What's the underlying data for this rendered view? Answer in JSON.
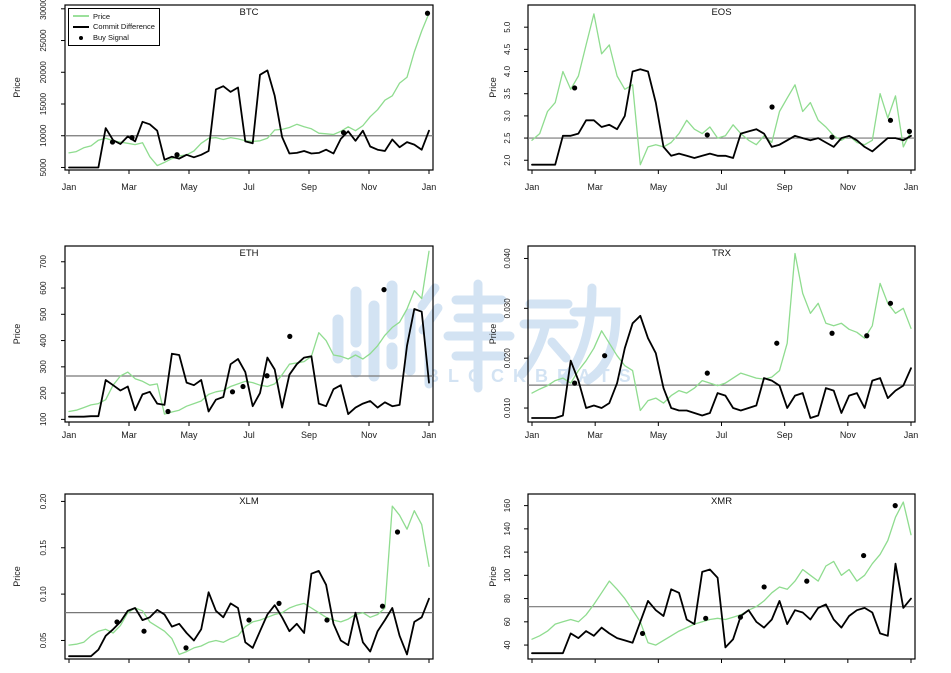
{
  "legend": {
    "items": [
      {
        "label": "Price",
        "swatch": "line",
        "color": "#9be09b"
      },
      {
        "label": "Commit Difference",
        "swatch": "line",
        "color": "#000000"
      },
      {
        "label": "Buy Signal",
        "swatch": "point",
        "color": "#000000"
      }
    ]
  },
  "watermark": {
    "text": "律动",
    "subtext": "BLOCKBEATS",
    "color": "#a8c8e8"
  },
  "colors": {
    "price_line": "#8fdc8f",
    "commit_line": "#000000",
    "hline": "#777777",
    "tick_text": "#1a1a1a"
  },
  "chart_data": [
    {
      "type": "line",
      "title": "BTC",
      "ylabel": "Price",
      "x_tick_labels": [
        "Jan",
        "Mar",
        "May",
        "Jul",
        "Sep",
        "Nov",
        "Jan"
      ],
      "x_tick_months": [
        0,
        2,
        4,
        6,
        8,
        10,
        12
      ],
      "ylim": [
        4600,
        30600
      ],
      "y_tick_values": [
        5000,
        10000,
        15000,
        20000,
        25000,
        30000
      ],
      "y_tick_labels": [
        "5000",
        "10000",
        "15000",
        "20000",
        "25000",
        "30000"
      ],
      "hline": 10000,
      "series": [
        {
          "name": "Price",
          "values": [
            7300,
            7500,
            8100,
            8400,
            9300,
            9600,
            9200,
            9000,
            8800,
            8600,
            8900,
            6700,
            5300,
            5800,
            6400,
            6800,
            7000,
            7600,
            8800,
            9600,
            9700,
            9400,
            9700,
            9500,
            9200,
            9100,
            9200,
            9600,
            10900,
            11000,
            11300,
            11800,
            11400,
            11100,
            10400,
            10300,
            10200,
            10700,
            11400,
            10800,
            11600,
            13000,
            14100,
            15600,
            16300,
            18300,
            19200,
            23200,
            26500,
            29300
          ]
        },
        {
          "name": "Commit Difference",
          "values": [
            5000,
            5000,
            5000,
            5000,
            5000,
            11200,
            9300,
            8700,
            9900,
            9100,
            12200,
            11800,
            10800,
            6200,
            6700,
            6400,
            7000,
            6600,
            7000,
            7600,
            17300,
            17800,
            16900,
            17600,
            9100,
            8800,
            19600,
            20300,
            16300,
            9800,
            7200,
            7300,
            7600,
            7200,
            7300,
            7800,
            7200,
            9500,
            10700,
            9200,
            10800,
            8300,
            7800,
            7600,
            9400,
            8200,
            9000,
            8600,
            7800,
            10800
          ]
        }
      ],
      "buy_signals": {
        "name": "Buy Signal",
        "x": [
          1.45,
          2.1,
          3.6,
          9.15,
          11.95
        ],
        "y": [
          9000,
          9700,
          7000,
          10500,
          29300
        ]
      }
    },
    {
      "type": "line",
      "title": "EOS",
      "ylabel": "Price",
      "x_tick_labels": [
        "Jan",
        "Mar",
        "May",
        "Jul",
        "Sep",
        "Nov",
        "Jan"
      ],
      "x_tick_months": [
        0,
        2,
        4,
        6,
        8,
        10,
        12
      ],
      "ylim": [
        1.78,
        5.5
      ],
      "y_tick_values": [
        2.0,
        2.5,
        3.0,
        3.5,
        4.0,
        4.5,
        5.0
      ],
      "y_tick_labels": [
        "2.0",
        "2.5",
        "3.0",
        "3.5",
        "4.0",
        "4.5",
        "5.0"
      ],
      "hline": 2.5,
      "series": [
        {
          "name": "Price",
          "values": [
            2.45,
            2.6,
            3.1,
            3.3,
            4.0,
            3.6,
            3.9,
            4.6,
            5.3,
            4.4,
            4.6,
            3.9,
            3.6,
            3.7,
            1.9,
            2.3,
            2.35,
            2.3,
            2.4,
            2.6,
            2.9,
            2.7,
            2.6,
            2.75,
            2.5,
            2.55,
            2.8,
            2.6,
            2.45,
            2.35,
            2.55,
            2.4,
            3.1,
            3.4,
            3.7,
            3.1,
            3.3,
            2.9,
            2.75,
            2.55,
            2.45,
            2.55,
            2.4,
            2.35,
            2.45,
            3.5,
            2.95,
            3.45,
            2.3,
            2.65
          ]
        },
        {
          "name": "Commit Difference",
          "values": [
            1.9,
            1.9,
            1.9,
            1.9,
            2.55,
            2.55,
            2.6,
            2.9,
            2.9,
            2.75,
            2.8,
            2.7,
            3.0,
            4.0,
            4.05,
            4.0,
            3.3,
            2.3,
            2.1,
            2.15,
            2.1,
            2.05,
            2.1,
            2.15,
            2.1,
            2.1,
            2.05,
            2.6,
            2.65,
            2.7,
            2.6,
            2.3,
            2.35,
            2.45,
            2.55,
            2.5,
            2.45,
            2.5,
            2.4,
            2.3,
            2.5,
            2.55,
            2.45,
            2.3,
            2.2,
            2.35,
            2.5,
            2.5,
            2.45,
            2.55
          ]
        }
      ],
      "buy_signals": {
        "name": "Buy Signal",
        "x": [
          1.35,
          5.55,
          7.6,
          9.5,
          11.35,
          11.95
        ],
        "y": [
          3.63,
          2.57,
          3.2,
          2.52,
          2.9,
          2.65
        ]
      }
    },
    {
      "type": "line",
      "title": "ETH",
      "ylabel": "Price",
      "x_tick_labels": [
        "Jan",
        "Mar",
        "May",
        "Jul",
        "Sep",
        "Nov",
        "Jan"
      ],
      "x_tick_months": [
        0,
        2,
        4,
        6,
        8,
        10,
        12
      ],
      "ylim": [
        90,
        760
      ],
      "y_tick_values": [
        100,
        200,
        300,
        400,
        500,
        600,
        700
      ],
      "y_tick_labels": [
        "100",
        "200",
        "300",
        "400",
        "500",
        "600",
        "700"
      ],
      "hline": 265,
      "series": [
        {
          "name": "Price",
          "values": [
            130,
            135,
            145,
            155,
            160,
            175,
            230,
            265,
            280,
            255,
            245,
            230,
            235,
            120,
            128,
            135,
            150,
            160,
            170,
            195,
            205,
            210,
            225,
            235,
            245,
            240,
            230,
            225,
            235,
            270,
            310,
            315,
            320,
            340,
            430,
            400,
            345,
            340,
            330,
            345,
            330,
            350,
            380,
            420,
            450,
            470,
            520,
            590,
            560,
            740
          ]
        },
        {
          "name": "Commit Difference",
          "values": [
            110,
            110,
            110,
            112,
            112,
            250,
            230,
            210,
            225,
            135,
            195,
            205,
            160,
            155,
            350,
            345,
            240,
            230,
            250,
            130,
            175,
            185,
            310,
            330,
            280,
            150,
            200,
            335,
            290,
            145,
            270,
            310,
            335,
            340,
            160,
            150,
            215,
            230,
            120,
            145,
            160,
            170,
            145,
            165,
            150,
            155,
            380,
            520,
            510,
            240
          ]
        }
      ],
      "buy_signals": {
        "name": "Buy Signal",
        "x": [
          3.3,
          5.45,
          5.8,
          6.6,
          7.36,
          10.5
        ],
        "y": [
          130,
          205,
          225,
          266,
          416,
          594
        ]
      }
    },
    {
      "type": "line",
      "title": "TRX",
      "ylabel": "Price",
      "x_tick_labels": [
        "Jan",
        "Mar",
        "May",
        "Jul",
        "Sep",
        "Nov",
        "Jan"
      ],
      "x_tick_months": [
        0,
        2,
        4,
        6,
        8,
        10,
        12
      ],
      "ylim": [
        0.0072,
        0.0425
      ],
      "y_tick_values": [
        0.01,
        0.02,
        0.03,
        0.04
      ],
      "y_tick_labels": [
        "0.010",
        "0.020",
        "0.030",
        "0.040"
      ],
      "hline": 0.0146,
      "series": [
        {
          "name": "Price",
          "values": [
            0.013,
            0.0138,
            0.0145,
            0.0155,
            0.016,
            0.015,
            0.0175,
            0.0195,
            0.022,
            0.0255,
            0.023,
            0.0205,
            0.0185,
            0.0175,
            0.0095,
            0.0115,
            0.012,
            0.011,
            0.0125,
            0.0135,
            0.013,
            0.014,
            0.0155,
            0.015,
            0.0145,
            0.015,
            0.016,
            0.017,
            0.0165,
            0.016,
            0.0158,
            0.0162,
            0.0175,
            0.023,
            0.041,
            0.033,
            0.029,
            0.031,
            0.027,
            0.0265,
            0.027,
            0.0258,
            0.0252,
            0.024,
            0.0265,
            0.035,
            0.031,
            0.029,
            0.03,
            0.026
          ]
        },
        {
          "name": "Commit Difference",
          "values": [
            0.008,
            0.008,
            0.008,
            0.008,
            0.0085,
            0.0195,
            0.0155,
            0.01,
            0.0105,
            0.01,
            0.011,
            0.015,
            0.022,
            0.027,
            0.0285,
            0.024,
            0.021,
            0.014,
            0.01,
            0.0095,
            0.0095,
            0.009,
            0.0085,
            0.009,
            0.013,
            0.0125,
            0.01,
            0.0095,
            0.01,
            0.0105,
            0.016,
            0.0155,
            0.0145,
            0.01,
            0.0125,
            0.013,
            0.008,
            0.0085,
            0.014,
            0.0135,
            0.009,
            0.0125,
            0.013,
            0.01,
            0.0155,
            0.016,
            0.012,
            0.0135,
            0.0145,
            0.018
          ]
        }
      ],
      "buy_signals": {
        "name": "Buy Signal",
        "x": [
          1.35,
          2.3,
          5.55,
          7.75,
          9.5,
          10.6,
          11.35
        ],
        "y": [
          0.015,
          0.0205,
          0.017,
          0.023,
          0.025,
          0.0245,
          0.031
        ]
      }
    },
    {
      "type": "line",
      "title": "XLM",
      "ylabel": "Price",
      "x_tick_labels": [
        "",
        "",
        "",
        "",
        "",
        "",
        ""
      ],
      "x_tick_months": [
        0,
        2,
        4,
        6,
        8,
        10,
        12
      ],
      "ylim": [
        0.03,
        0.208
      ],
      "y_tick_values": [
        0.05,
        0.1,
        0.15,
        0.2
      ],
      "y_tick_labels": [
        "0.05",
        "0.10",
        "0.15",
        "0.20"
      ],
      "hline": 0.08,
      "series": [
        {
          "name": "Price",
          "values": [
            0.045,
            0.046,
            0.048,
            0.055,
            0.06,
            0.062,
            0.058,
            0.066,
            0.08,
            0.085,
            0.082,
            0.07,
            0.065,
            0.06,
            0.052,
            0.035,
            0.038,
            0.042,
            0.044,
            0.048,
            0.05,
            0.048,
            0.052,
            0.055,
            0.065,
            0.07,
            0.072,
            0.075,
            0.078,
            0.08,
            0.085,
            0.088,
            0.09,
            0.085,
            0.08,
            0.075,
            0.072,
            0.07,
            0.073,
            0.078,
            0.08,
            0.075,
            0.078,
            0.085,
            0.195,
            0.185,
            0.17,
            0.19,
            0.175,
            0.13
          ]
        },
        {
          "name": "Commit Difference",
          "values": [
            0.033,
            0.033,
            0.033,
            0.033,
            0.04,
            0.055,
            0.062,
            0.07,
            0.082,
            0.085,
            0.072,
            0.075,
            0.083,
            0.078,
            0.065,
            0.068,
            0.058,
            0.05,
            0.062,
            0.102,
            0.082,
            0.075,
            0.09,
            0.085,
            0.048,
            0.042,
            0.06,
            0.078,
            0.088,
            0.075,
            0.06,
            0.068,
            0.058,
            0.122,
            0.125,
            0.11,
            0.068,
            0.05,
            0.045,
            0.08,
            0.048,
            0.038,
            0.06,
            0.072,
            0.085,
            0.055,
            0.035,
            0.07,
            0.075,
            0.095
          ]
        }
      ],
      "buy_signals": {
        "name": "Buy Signal",
        "x": [
          1.6,
          2.5,
          3.9,
          6.0,
          7.0,
          8.6,
          10.45,
          10.95
        ],
        "y": [
          0.07,
          0.06,
          0.042,
          0.072,
          0.09,
          0.072,
          0.087,
          0.167
        ]
      }
    },
    {
      "type": "line",
      "title": "XMR",
      "ylabel": "Price",
      "x_tick_labels": [
        "",
        "",
        "",
        "",
        "",
        "",
        ""
      ],
      "x_tick_months": [
        0,
        2,
        4,
        6,
        8,
        10,
        12
      ],
      "ylim": [
        28,
        170
      ],
      "y_tick_values": [
        40,
        60,
        80,
        100,
        120,
        140,
        160
      ],
      "y_tick_labels": [
        "40",
        "60",
        "80",
        "100",
        "120",
        "140",
        "160"
      ],
      "hline": 73,
      "series": [
        {
          "name": "Price",
          "values": [
            45,
            48,
            52,
            58,
            60,
            62,
            60,
            66,
            75,
            85,
            95,
            88,
            80,
            70,
            60,
            42,
            40,
            44,
            48,
            52,
            55,
            58,
            60,
            62,
            63,
            62,
            64,
            66,
            70,
            73,
            78,
            85,
            90,
            88,
            95,
            105,
            100,
            95,
            108,
            112,
            100,
            105,
            95,
            100,
            110,
            118,
            130,
            150,
            163,
            135
          ]
        },
        {
          "name": "Commit Difference",
          "values": [
            33,
            33,
            33,
            33,
            33,
            50,
            46,
            52,
            48,
            55,
            50,
            46,
            44,
            42,
            60,
            78,
            70,
            65,
            88,
            85,
            62,
            58,
            103,
            105,
            98,
            38,
            45,
            65,
            70,
            60,
            55,
            62,
            78,
            58,
            70,
            68,
            62,
            72,
            75,
            62,
            55,
            65,
            70,
            72,
            68,
            50,
            48,
            110,
            72,
            80
          ]
        }
      ],
      "buy_signals": {
        "name": "Buy Signal",
        "x": [
          3.5,
          5.5,
          6.6,
          7.35,
          8.7,
          10.5,
          11.5
        ],
        "y": [
          50,
          63,
          64,
          90,
          95,
          117,
          160
        ]
      }
    }
  ]
}
